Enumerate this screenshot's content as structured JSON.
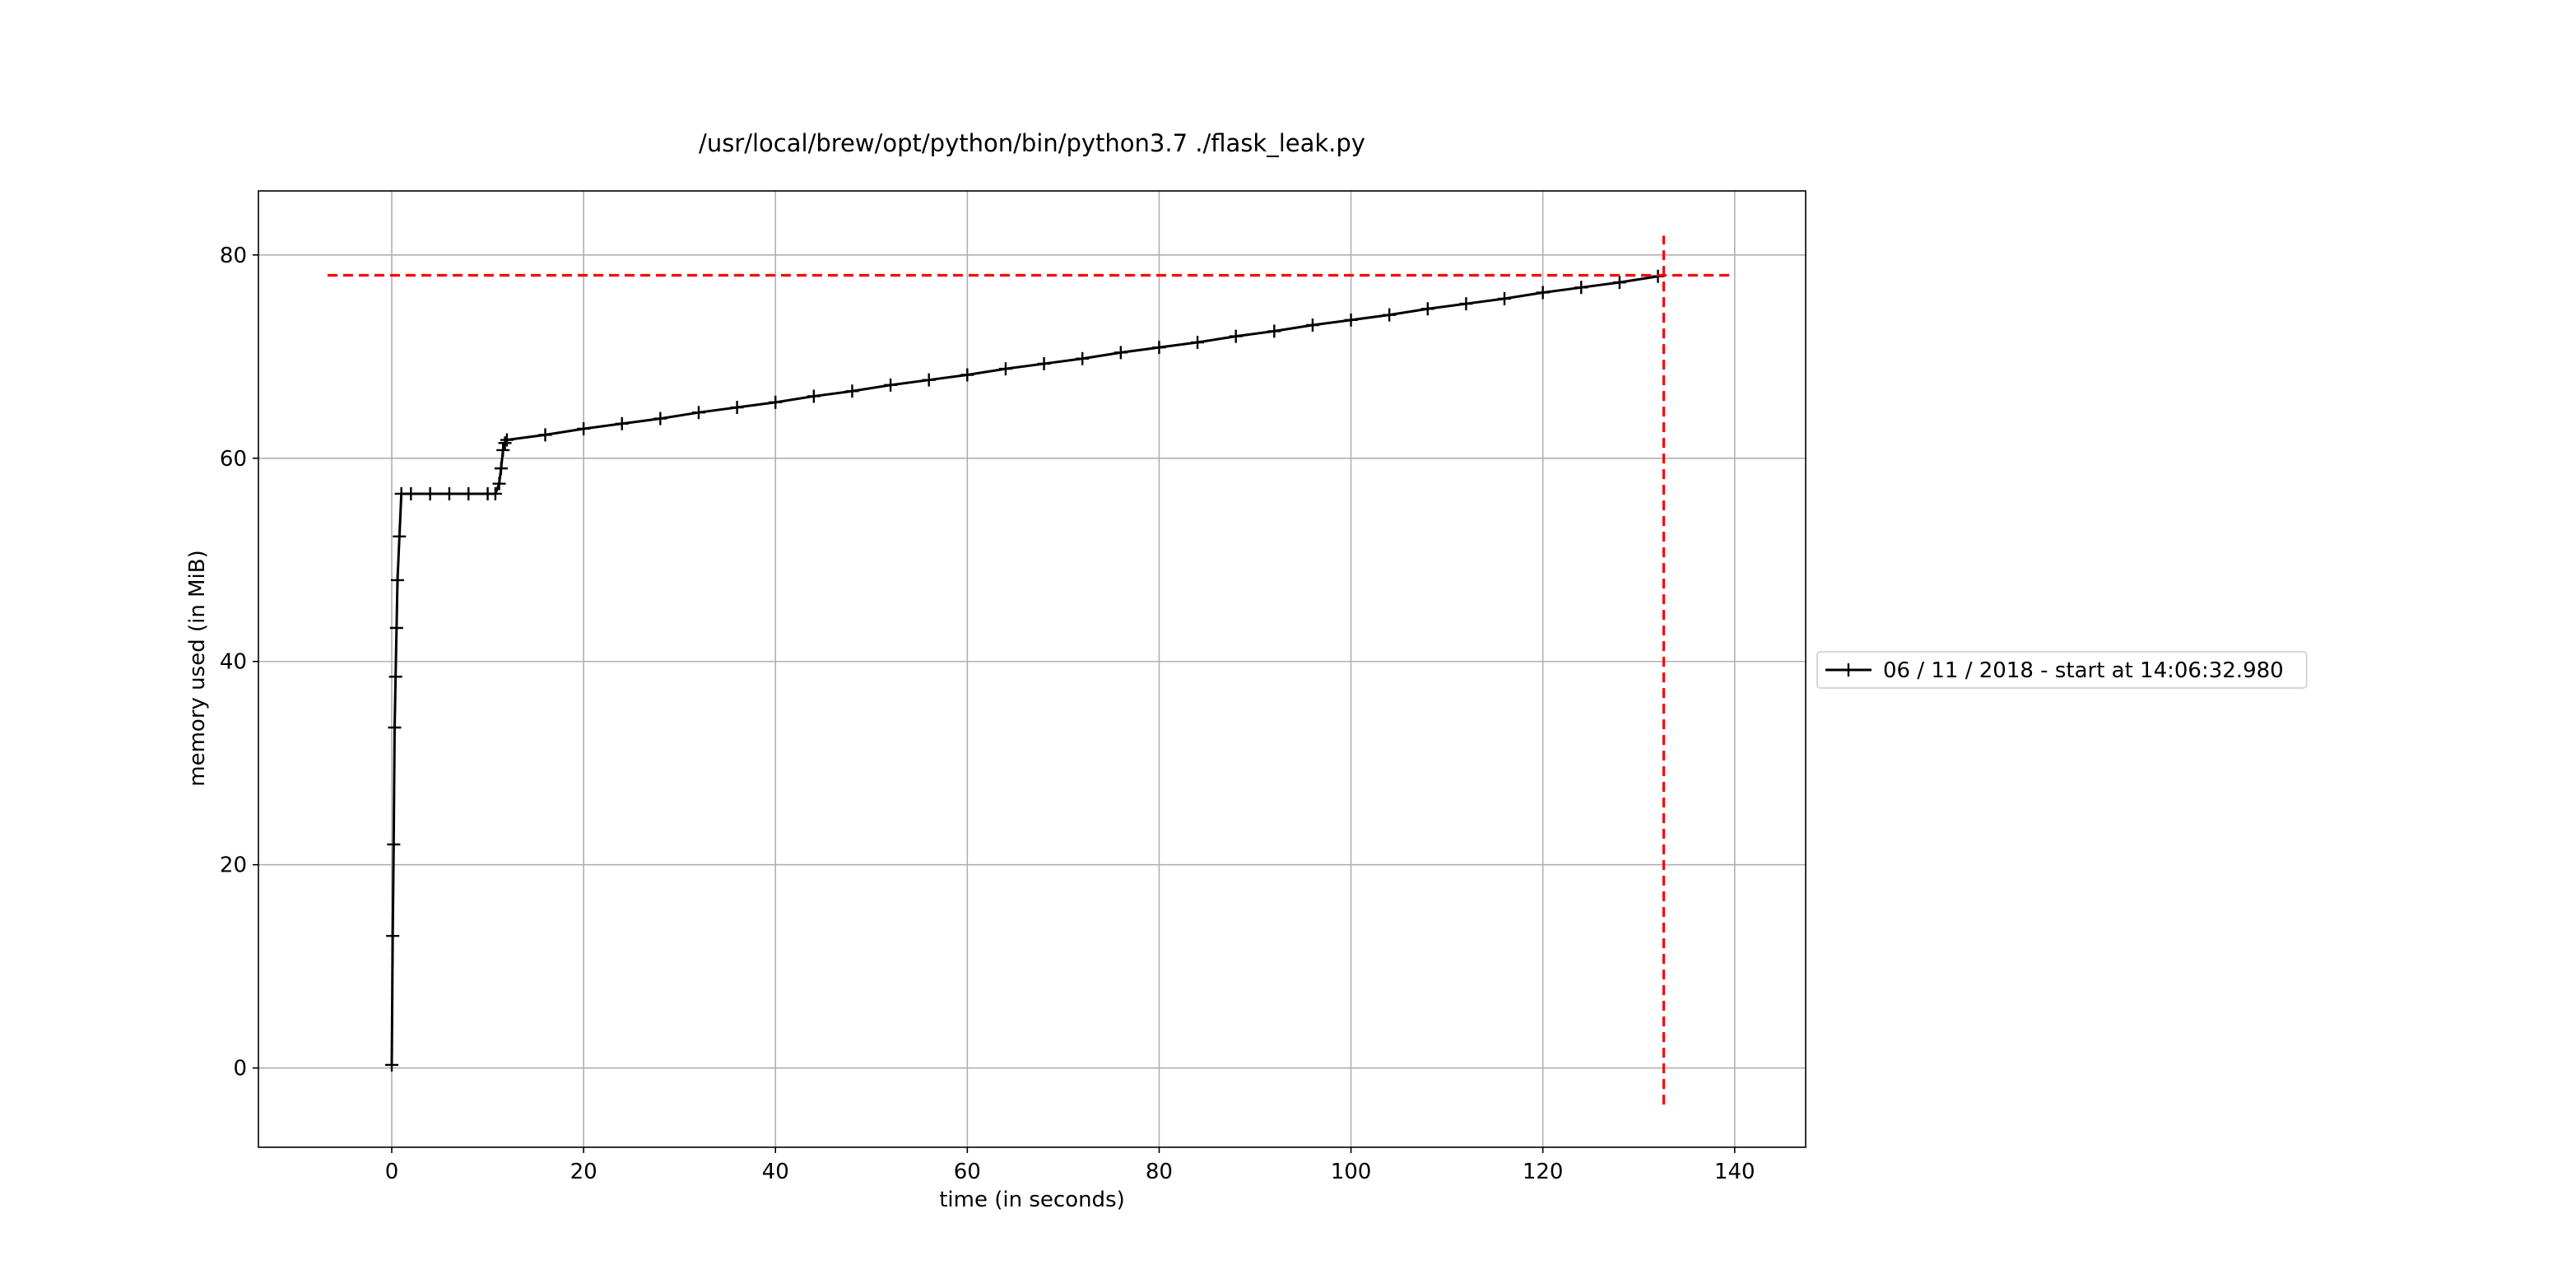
{
  "chart_data": {
    "type": "line",
    "title": "/usr/local/brew/opt/python/bin/python3.7 ./flask_leak.py",
    "x_label": "time (in seconds)",
    "y_label": "memory used (in MiB)",
    "xlim": [
      -13.9,
      147.4
    ],
    "ylim": [
      -7.8,
      86.3
    ],
    "xticks": [
      0,
      20,
      40,
      60,
      80,
      100,
      120,
      140
    ],
    "yticks": [
      0,
      20,
      40,
      60,
      80
    ],
    "grid": true,
    "legend": "right",
    "series": [
      {
        "name": "06 / 11 / 2018 - start at 14:06:32.980",
        "color": "#000000",
        "x": [
          0,
          0.1,
          0.2,
          0.3,
          0.4,
          0.5,
          0.6,
          0.8,
          1,
          2,
          4,
          6,
          8,
          10,
          10.8,
          11.2,
          11.4,
          11.6,
          11.8,
          12,
          16,
          20,
          24,
          28,
          32,
          36,
          40,
          44,
          48,
          52,
          56,
          60,
          64,
          68,
          72,
          76,
          80,
          84,
          88,
          92,
          96,
          100,
          104,
          108,
          112,
          116,
          120,
          124,
          128,
          132
        ],
        "values": [
          0.3,
          13,
          22,
          33.5,
          38.5,
          43.3,
          48,
          52.3,
          56.5,
          56.5,
          56.5,
          56.5,
          56.5,
          56.5,
          56.5,
          57.5,
          59,
          60.8,
          61.5,
          61.8,
          62.3,
          62.9,
          63.4,
          63.9,
          64.5,
          65.0,
          65.5,
          66.1,
          66.6,
          67.2,
          67.7,
          68.2,
          68.8,
          69.3,
          69.8,
          70.4,
          70.9,
          71.4,
          72.0,
          72.5,
          73.1,
          73.6,
          74.1,
          74.7,
          75.2,
          75.7,
          76.3,
          76.8,
          77.3,
          77.9
        ]
      }
    ],
    "max_lines": {
      "color": "#ff0000",
      "hline": {
        "y": 78.0,
        "xmin": -6.7,
        "xmax": 139.6
      },
      "vline": {
        "x": 132.6,
        "ymin": -3.6,
        "ymax": 81.9
      }
    }
  }
}
